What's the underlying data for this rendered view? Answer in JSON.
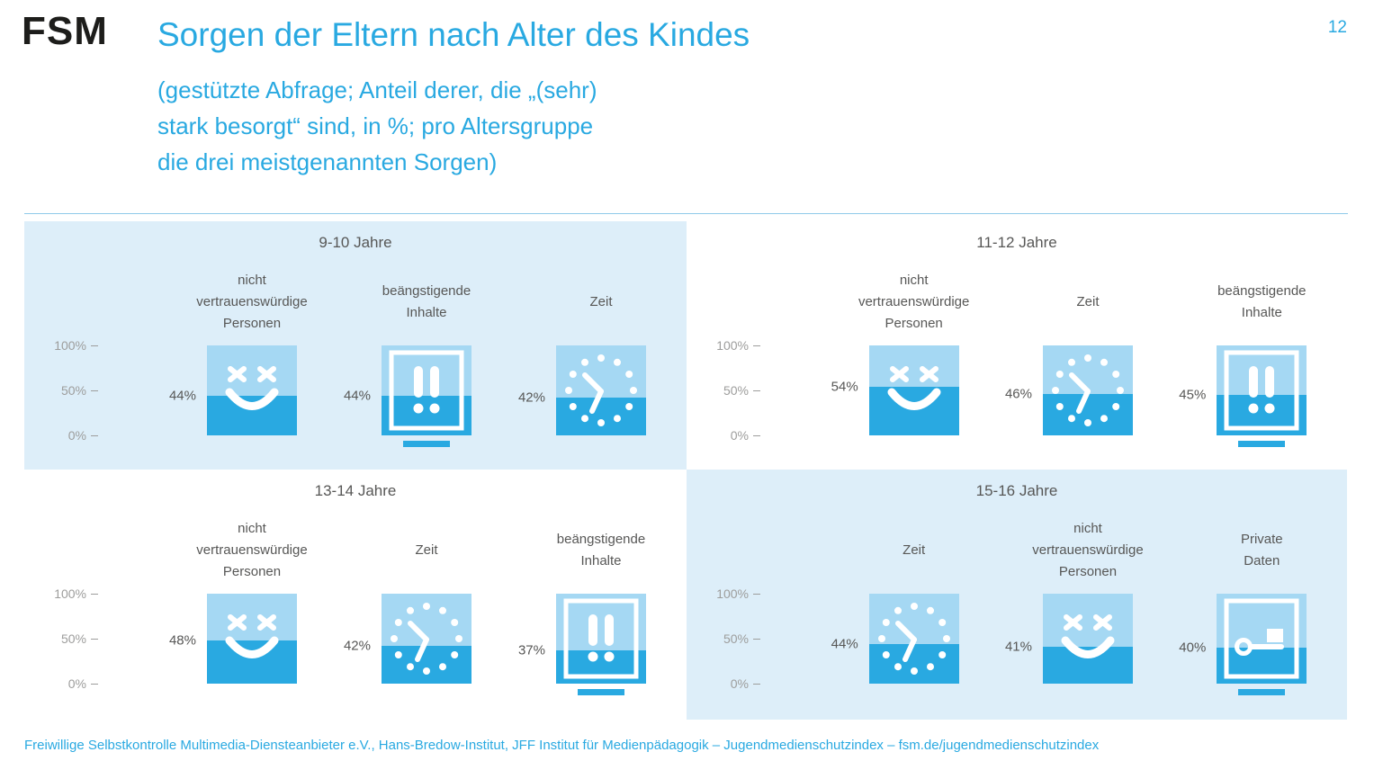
{
  "header": {
    "logo": "FSM",
    "page_number": "12",
    "title": "Sorgen der Eltern nach Alter des Kindes",
    "subtitle_lines": [
      "(gestützte Abfrage; Anteil derer, die „(sehr)",
      "stark besorgt“ sind, in %; pro Altersgruppe",
      "die drei meistgenannten Sorgen)"
    ]
  },
  "footer": {
    "text": "Freiwillige Selbstkontrolle Multimedia-Diensteanbieter e.V., Hans-Bredow-Institut, JFF Institut für Medienpädagogik –  Jugendmedienschutzindex – fsm.de/jugendmedienschutzindex"
  },
  "colors": {
    "accent": "#29a9e1",
    "panel_highlight_bg": "#ddeef9",
    "icon_fill_light": "#a5d8f3",
    "icon_fill_dark": "#29a9e1",
    "axis_text": "#9d9d9c",
    "body_text": "#575756"
  },
  "chart_data": {
    "type": "bar",
    "title": "Sorgen der Eltern nach Alter des Kindes",
    "subtitle": "(gestützte Abfrage; Anteil derer, die „(sehr) stark besorgt“ sind, in %; pro Altersgruppe die drei meistgenannten Sorgen)",
    "unit": "%",
    "ylim": [
      0,
      100
    ],
    "ytick_labels": [
      "100%",
      "50%",
      "0%"
    ],
    "legend": "none",
    "grid": "off",
    "groups": [
      {
        "label": "9-10 Jahre",
        "highlighted": true,
        "items": [
          {
            "category": "nicht vertrauenswürdige Personen",
            "label_lines": [
              "nicht",
              "vertrauenswürdige",
              "Personen"
            ],
            "value": 44,
            "value_label": "44%",
            "icon": "evil-face"
          },
          {
            "category": "beängstigende Inhalte",
            "label_lines": [
              "beängstigende",
              "Inhalte"
            ],
            "value": 44,
            "value_label": "44%",
            "icon": "screen-alert"
          },
          {
            "category": "Zeit",
            "label_lines": [
              "Zeit"
            ],
            "value": 42,
            "value_label": "42%",
            "icon": "clock"
          }
        ]
      },
      {
        "label": "11-12 Jahre",
        "highlighted": false,
        "items": [
          {
            "category": "nicht vertrauenswürdige Personen",
            "label_lines": [
              "nicht",
              "vertrauenswürdige",
              "Personen"
            ],
            "value": 54,
            "value_label": "54%",
            "icon": "evil-face"
          },
          {
            "category": "Zeit",
            "label_lines": [
              "Zeit"
            ],
            "value": 46,
            "value_label": "46%",
            "icon": "clock"
          },
          {
            "category": "beängstigende Inhalte",
            "label_lines": [
              "beängstigende",
              "Inhalte"
            ],
            "value": 45,
            "value_label": "45%",
            "icon": "screen-alert"
          }
        ]
      },
      {
        "label": "13-14 Jahre",
        "highlighted": false,
        "items": [
          {
            "category": "nicht vertrauenswürdige Personen",
            "label_lines": [
              "nicht",
              "vertrauenswürdige",
              "Personen"
            ],
            "value": 48,
            "value_label": "48%",
            "icon": "evil-face"
          },
          {
            "category": "Zeit",
            "label_lines": [
              "Zeit"
            ],
            "value": 42,
            "value_label": "42%",
            "icon": "clock"
          },
          {
            "category": "beängstigende Inhalte",
            "label_lines": [
              "beängstigende",
              "Inhalte"
            ],
            "value": 37,
            "value_label": "37%",
            "icon": "screen-alert"
          }
        ]
      },
      {
        "label": "15-16 Jahre",
        "highlighted": true,
        "items": [
          {
            "category": "Zeit",
            "label_lines": [
              "Zeit"
            ],
            "value": 44,
            "value_label": "44%",
            "icon": "clock"
          },
          {
            "category": "nicht vertrauenswürdige Personen",
            "label_lines": [
              "nicht",
              "vertrauenswürdige",
              "Personen"
            ],
            "value": 41,
            "value_label": "41%",
            "icon": "evil-face"
          },
          {
            "category": "Private Daten",
            "label_lines": [
              "Private",
              "Daten"
            ],
            "value": 40,
            "value_label": "40%",
            "icon": "screen-key"
          }
        ]
      }
    ]
  }
}
